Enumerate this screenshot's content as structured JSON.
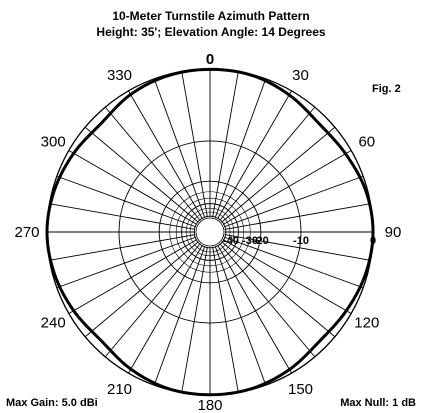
{
  "figure_label": "Fig. 2",
  "footer": {
    "max_gain": "Max Gain:  5.0 dBi",
    "max_null": "Max Null:  1 dB"
  },
  "chart_data": {
    "type": "polar",
    "title": "10-Meter Turnstile Azimuth Pattern",
    "subtitle": "Height:  35'; Elevation Angle:  14 Degrees",
    "angle_ticks": [
      0,
      30,
      60,
      90,
      120,
      150,
      180,
      210,
      240,
      270,
      300,
      330
    ],
    "angle_tick_labels": [
      "0",
      "30",
      "60",
      "90",
      "120",
      "150",
      "180",
      "210",
      "240",
      "270",
      "300",
      "330"
    ],
    "radial_spoke_step_deg": 10,
    "db_ring_labels": [
      "-40",
      "-30",
      "-20",
      "-10",
      "0"
    ],
    "db_ring_values": [
      -40,
      -30,
      -20,
      -10,
      0
    ],
    "radial_scale": "log-periodic",
    "max_gain_dbi": 5.0,
    "max_null_db": 1,
    "series": [
      {
        "relative_db": [
          [
            0,
            -0.04
          ],
          [
            15,
            -0.09
          ],
          [
            30,
            -0.5
          ],
          [
            45,
            -1.0
          ],
          [
            60,
            -0.7
          ],
          [
            75,
            -0.2
          ],
          [
            90,
            0.0
          ],
          [
            105,
            -0.2
          ],
          [
            120,
            -0.6
          ],
          [
            135,
            -0.9
          ],
          [
            150,
            -0.45
          ],
          [
            165,
            -0.1
          ],
          [
            180,
            -0.03
          ],
          [
            195,
            -0.1
          ],
          [
            210,
            -0.5
          ],
          [
            225,
            -1.0
          ],
          [
            240,
            -0.6
          ],
          [
            255,
            -0.2
          ],
          [
            270,
            0.0
          ],
          [
            285,
            -0.2
          ],
          [
            300,
            -0.6
          ],
          [
            315,
            -1.0
          ],
          [
            330,
            -0.45
          ],
          [
            345,
            -0.12
          ]
        ]
      }
    ]
  }
}
